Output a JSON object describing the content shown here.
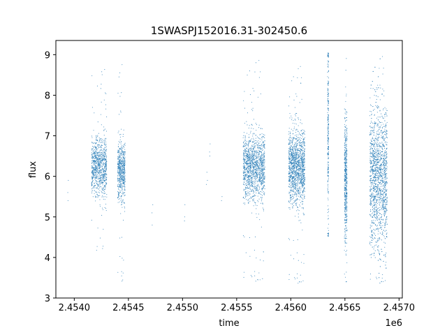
{
  "chart_data": {
    "type": "scatter",
    "title": "1SWASPJ152016.31-302450.6",
    "xlabel": "time",
    "ylabel": "flux",
    "x_offset_label": "1e6",
    "xlim": [
      2453830,
      2457030
    ],
    "ylim": [
      3.0,
      9.35
    ],
    "x_ticks": [
      2454000,
      2454500,
      2455000,
      2455500,
      2456000,
      2456500,
      2457000
    ],
    "x_tick_labels": [
      "2.4540",
      "2.4545",
      "2.4550",
      "2.4555",
      "2.4560",
      "2.4565",
      "2.4570"
    ],
    "y_ticks": [
      3,
      4,
      5,
      6,
      7,
      8,
      9
    ],
    "y_tick_labels": [
      "3",
      "4",
      "5",
      "6",
      "7",
      "8",
      "9"
    ],
    "grid": false,
    "marker_color": "#1f77b4",
    "seasons": [
      {
        "x_start": 2454160,
        "x_end": 2454300,
        "y_center": 6.25,
        "y_spread": 0.35,
        "y_min": 4.1,
        "y_max": 8.7,
        "density": 900
      },
      {
        "x_start": 2454400,
        "x_end": 2454470,
        "y_center": 6.15,
        "y_spread": 0.35,
        "y_min": 3.35,
        "y_max": 8.9,
        "density": 600
      },
      {
        "x_start": 2455560,
        "x_end": 2455760,
        "y_center": 6.25,
        "y_spread": 0.4,
        "y_min": 3.35,
        "y_max": 8.95,
        "density": 1400
      },
      {
        "x_start": 2455980,
        "x_end": 2456130,
        "y_center": 6.25,
        "y_spread": 0.45,
        "y_min": 3.3,
        "y_max": 8.8,
        "density": 1400
      },
      {
        "x_start": 2456340,
        "x_end": 2456350,
        "y_center": 7.0,
        "y_spread": 1.2,
        "y_min": 4.5,
        "y_max": 9.05,
        "density": 250
      },
      {
        "x_start": 2456495,
        "x_end": 2456520,
        "y_center": 6.0,
        "y_spread": 0.8,
        "y_min": 3.3,
        "y_max": 9.0,
        "density": 500
      },
      {
        "x_start": 2456730,
        "x_end": 2456890,
        "y_center": 6.0,
        "y_spread": 0.85,
        "y_min": 3.3,
        "y_max": 9.05,
        "density": 1800
      }
    ],
    "sparse_points": [
      {
        "x": 2453940,
        "y": 5.6
      },
      {
        "x": 2453942,
        "y": 5.4
      },
      {
        "x": 2453945,
        "y": 5.9
      },
      {
        "x": 2454720,
        "y": 4.8
      },
      {
        "x": 2454725,
        "y": 5.3
      },
      {
        "x": 2454718,
        "y": 5.1
      },
      {
        "x": 2455020,
        "y": 5.0
      },
      {
        "x": 2455022,
        "y": 5.3
      },
      {
        "x": 2455018,
        "y": 4.9
      },
      {
        "x": 2455220,
        "y": 5.8
      },
      {
        "x": 2455225,
        "y": 6.1
      },
      {
        "x": 2455230,
        "y": 5.9
      },
      {
        "x": 2455250,
        "y": 6.6
      },
      {
        "x": 2455255,
        "y": 6.8
      },
      {
        "x": 2455252,
        "y": 6.5
      },
      {
        "x": 2455360,
        "y": 5.4
      },
      {
        "x": 2455365,
        "y": 5.5
      }
    ]
  }
}
